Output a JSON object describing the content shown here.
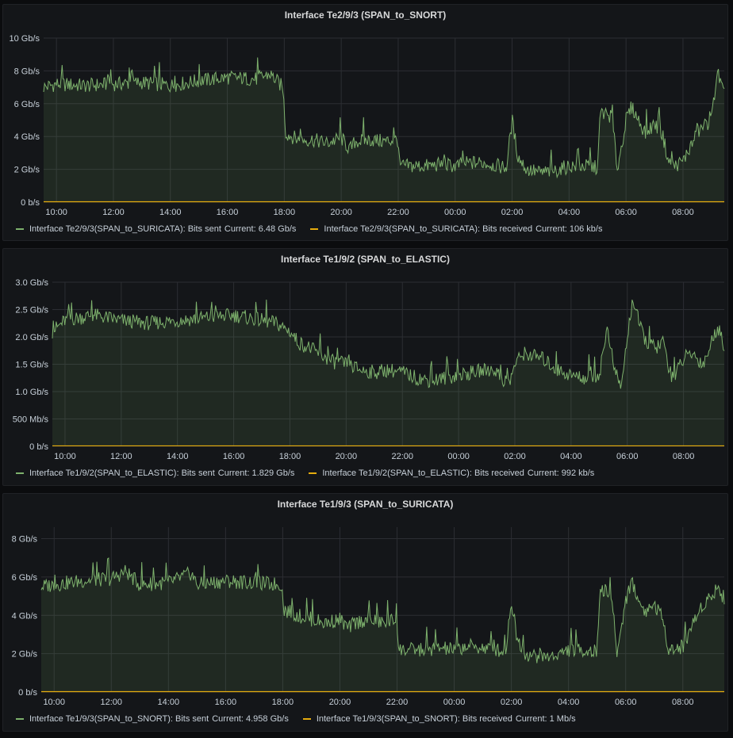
{
  "colors": {
    "sent": "#7eb26d",
    "received": "#e5ac0e",
    "grid": "#2c2e33",
    "text": "#c7d0d9"
  },
  "panels": [
    {
      "title": "Interface Te2/9/3 (SPAN_to_SNORT)",
      "legend": [
        {
          "label": "Interface Te2/9/3(SPAN_to_SURICATA): Bits sent",
          "current": "Current: 6.48 Gb/s"
        },
        {
          "label": "Interface Te2/9/3(SPAN_to_SURICATA): Bits received",
          "current": "Current: 106 kb/s"
        }
      ]
    },
    {
      "title": "Interface Te1/9/2 (SPAN_to_ELASTIC)",
      "legend": [
        {
          "label": "Interface Te1/9/2(SPAN_to_ELASTIC): Bits sent",
          "current": "Current: 1.829 Gb/s"
        },
        {
          "label": "Interface Te1/9/2(SPAN_to_ELASTIC): Bits received",
          "current": "Current: 992 kb/s"
        }
      ]
    },
    {
      "title": "Interface Te1/9/3 (SPAN_to_SURICATA)",
      "legend": [
        {
          "label": "Interface Te1/9/3(SPAN_to_SNORT): Bits sent",
          "current": "Current: 4.958 Gb/s"
        },
        {
          "label": "Interface Te1/9/3(SPAN_to_SNORT): Bits received",
          "current": "Current: 1 Mb/s"
        }
      ]
    }
  ],
  "chart_data": [
    {
      "type": "area",
      "title": "Interface Te2/9/3 (SPAN_to_SNORT)",
      "xlabel": "",
      "ylabel": "",
      "x_range_hours": [
        9.55,
        33.45
      ],
      "xticks": [
        "10:00",
        "12:00",
        "14:00",
        "16:00",
        "18:00",
        "20:00",
        "22:00",
        "00:00",
        "02:00",
        "04:00",
        "06:00",
        "08:00"
      ],
      "yticks": [
        "0 b/s",
        "2 Gb/s",
        "4 Gb/s",
        "6 Gb/s",
        "8 Gb/s",
        "10 Gb/s"
      ],
      "ylim": [
        0,
        10
      ],
      "unit": "Gb/s",
      "series": [
        {
          "name": "Interface Te2/9/3(SPAN_to_SURICATA): Bits sent",
          "x": [
            9.55,
            10,
            11,
            12,
            13,
            14,
            15,
            16,
            17,
            17.5,
            17.95,
            18.05,
            18.5,
            19,
            19.5,
            20,
            20.3,
            20.5,
            21,
            21.5,
            22,
            22.05,
            22.5,
            23,
            23.5,
            24,
            24.5,
            25,
            25.5,
            25.8,
            26,
            26.2,
            26.5,
            27,
            27.5,
            28,
            28.5,
            29,
            29.1,
            29.5,
            29.7,
            30,
            30.2,
            30.5,
            30.7,
            31,
            31.3,
            31.5,
            31.7,
            32,
            32.3,
            32.5,
            32.7,
            33,
            33.2,
            33.45
          ],
          "values": [
            7,
            7.2,
            7.1,
            7.2,
            7.3,
            7.1,
            7.4,
            7.6,
            7.5,
            7.8,
            7.0,
            4.2,
            3.8,
            3.8,
            3.6,
            3.9,
            3.2,
            3.7,
            3.8,
            3.7,
            3.8,
            2.2,
            2.2,
            2.2,
            2.3,
            2.2,
            2.4,
            2.4,
            2.2,
            2.1,
            5.0,
            2.8,
            2.0,
            1.8,
            1.9,
            2.2,
            2.2,
            2.1,
            5.5,
            5.2,
            2.0,
            5.0,
            5.8,
            4.8,
            4.2,
            4.8,
            4.0,
            2.4,
            2.2,
            2.5,
            3.5,
            4.2,
            4.6,
            5.0,
            8.0,
            6.5
          ]
        },
        {
          "name": "Interface Te2/9/3(SPAN_to_SURICATA): Bits received",
          "x": [
            9.55,
            33.45
          ],
          "values": [
            0.0001,
            0.0001
          ]
        }
      ]
    },
    {
      "type": "area",
      "title": "Interface Te1/9/2 (SPAN_to_ELASTIC)",
      "xlabel": "",
      "ylabel": "",
      "x_range_hours": [
        9.55,
        33.45
      ],
      "xticks": [
        "10:00",
        "12:00",
        "14:00",
        "16:00",
        "18:00",
        "20:00",
        "22:00",
        "00:00",
        "02:00",
        "04:00",
        "06:00",
        "08:00"
      ],
      "yticks": [
        "0 b/s",
        "500 Mb/s",
        "1.0 Gb/s",
        "1.5 Gb/s",
        "2.0 Gb/s",
        "2.5 Gb/s",
        "3.0 Gb/s"
      ],
      "ylim": [
        0,
        3
      ],
      "unit": "Gb/s",
      "series": [
        {
          "name": "Interface Te1/9/2(SPAN_to_ELASTIC): Bits sent",
          "x": [
            9.55,
            10,
            11,
            12,
            13,
            14,
            15,
            16,
            17,
            17.5,
            18,
            18.3,
            18.7,
            19,
            19.5,
            20,
            20.5,
            21,
            21.5,
            22,
            22.5,
            23,
            23.5,
            24,
            24.5,
            25,
            25.3,
            25.5,
            25.8,
            26,
            26.3,
            26.7,
            27,
            27.5,
            28,
            28.5,
            29,
            29.3,
            29.5,
            29.6,
            29.8,
            30,
            30.2,
            30.5,
            30.7,
            31,
            31.3,
            31.5,
            31.7,
            32,
            32.3,
            32.5,
            32.7,
            33,
            33.2,
            33.45
          ],
          "values": [
            2.1,
            2.3,
            2.4,
            2.3,
            2.25,
            2.3,
            2.35,
            2.4,
            2.3,
            2.25,
            2.1,
            1.9,
            1.8,
            1.7,
            1.55,
            1.5,
            1.4,
            1.35,
            1.4,
            1.35,
            1.25,
            1.2,
            1.25,
            1.3,
            1.35,
            1.4,
            1.4,
            1.25,
            1.15,
            1.5,
            1.7,
            1.65,
            1.6,
            1.4,
            1.3,
            1.25,
            1.3,
            2.2,
            1.5,
            1.3,
            1.1,
            2.0,
            2.7,
            2.1,
            1.9,
            1.8,
            1.9,
            1.3,
            1.3,
            1.6,
            1.7,
            1.6,
            1.5,
            1.9,
            2.2,
            1.85
          ]
        },
        {
          "name": "Interface Te1/9/2(SPAN_to_ELASTIC): Bits received",
          "x": [
            9.55,
            33.45
          ],
          "values": [
            0.001,
            0.001
          ]
        }
      ]
    },
    {
      "type": "area",
      "title": "Interface Te1/9/3 (SPAN_to_SURICATA)",
      "xlabel": "",
      "ylabel": "",
      "x_range_hours": [
        9.55,
        33.45
      ],
      "xticks": [
        "10:00",
        "12:00",
        "14:00",
        "16:00",
        "18:00",
        "20:00",
        "22:00",
        "00:00",
        "02:00",
        "04:00",
        "06:00",
        "08:00"
      ],
      "yticks": [
        "0 b/s",
        "2 Gb/s",
        "4 Gb/s",
        "6 Gb/s",
        "8 Gb/s"
      ],
      "ylim": [
        0,
        8.6
      ],
      "unit": "Gb/s",
      "series": [
        {
          "name": "Interface Te1/9/3(SPAN_to_SNORT): Bits sent",
          "x": [
            9.55,
            10,
            11,
            12,
            12.5,
            13,
            14,
            14.8,
            15,
            16,
            17,
            17.95,
            18.05,
            18.5,
            19,
            19.5,
            20,
            20.3,
            20.5,
            21,
            21.5,
            22,
            22.05,
            22.5,
            23,
            23.5,
            24,
            24.5,
            25,
            25.5,
            25.8,
            26,
            26.2,
            26.5,
            27,
            27.5,
            28,
            28.5,
            29,
            29.1,
            29.5,
            29.7,
            30,
            30.2,
            30.5,
            30.7,
            31,
            31.3,
            31.5,
            31.7,
            32,
            32.3,
            32.5,
            32.7,
            33,
            33.2,
            33.45
          ],
          "values": [
            5.5,
            5.6,
            5.8,
            5.9,
            6.3,
            5.6,
            5.7,
            6.2,
            5.6,
            5.8,
            5.7,
            5.6,
            4.3,
            4.0,
            3.8,
            3.6,
            3.8,
            3.3,
            3.6,
            3.8,
            3.6,
            3.8,
            2.2,
            2.2,
            2.2,
            2.3,
            2.2,
            2.4,
            2.3,
            2.2,
            2.1,
            4.8,
            2.8,
            2.0,
            1.8,
            1.9,
            2.2,
            2.2,
            2.1,
            5.5,
            5.0,
            2.0,
            4.8,
            5.8,
            4.6,
            4.2,
            4.6,
            3.8,
            2.3,
            2.2,
            2.4,
            3.4,
            4.0,
            4.6,
            5.0,
            5.5,
            4.9
          ]
        },
        {
          "name": "Interface Te1/9/3(SPAN_to_SNORT): Bits received",
          "x": [
            9.55,
            33.45
          ],
          "values": [
            0.001,
            0.001
          ]
        }
      ]
    }
  ]
}
